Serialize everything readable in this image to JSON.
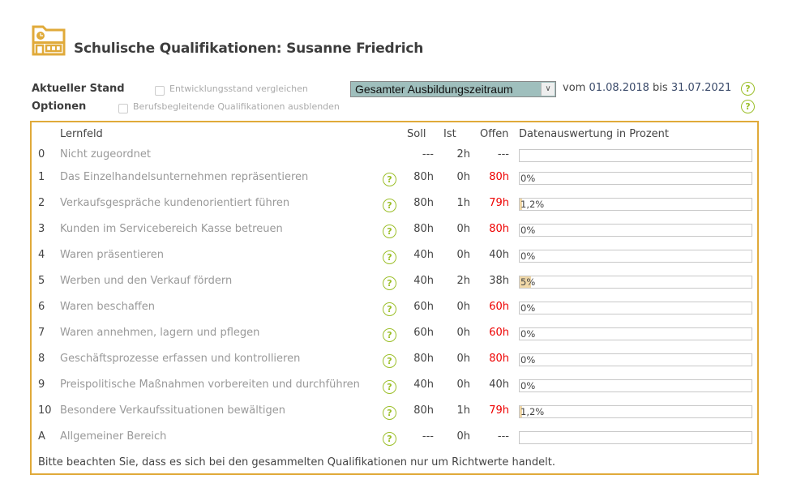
{
  "header": {
    "title": "Schulische Qualifikationen: Susanne Friedrich",
    "icon": "school-building-icon"
  },
  "controls": {
    "current_label": "Aktueller Stand",
    "options_label": "Optionen",
    "compare_checkbox": {
      "label": "Entwicklungsstand vergleichen",
      "checked": false
    },
    "hide_checkbox": {
      "label": "Berufsbegleitende Qualifikationen ausblenden",
      "checked": false
    },
    "period_select": "Gesamter Ausbildungszeitraum",
    "period_from_prefix": "vom",
    "period_from": "01.08.2018",
    "period_to_prefix": "bis",
    "period_to": "31.07.2021"
  },
  "table": {
    "columns": {
      "lernfeld": "Lernfeld",
      "soll": "Soll",
      "ist": "Ist",
      "offen": "Offen",
      "auswertung": "Datenauswertung in Prozent"
    },
    "rows": [
      {
        "num": "0",
        "name": "Nicht zugeordnet",
        "help": false,
        "soll": "---",
        "ist": "2h",
        "offen": "---",
        "offen_red": false,
        "percent_label": "",
        "percent": 0
      },
      {
        "num": "1",
        "name": "Das Einzelhandelsunternehmen repräsentieren",
        "help": true,
        "soll": "80h",
        "ist": "0h",
        "offen": "80h",
        "offen_red": true,
        "percent_label": "0%",
        "percent": 0
      },
      {
        "num": "2",
        "name": "Verkaufsgespräche kundenorientiert führen",
        "help": true,
        "soll": "80h",
        "ist": "1h",
        "offen": "79h",
        "offen_red": true,
        "percent_label": "1,2%",
        "percent": 1.2
      },
      {
        "num": "3",
        "name": "Kunden im Servicebereich Kasse betreuen",
        "help": true,
        "soll": "80h",
        "ist": "0h",
        "offen": "80h",
        "offen_red": true,
        "percent_label": "0%",
        "percent": 0
      },
      {
        "num": "4",
        "name": "Waren präsentieren",
        "help": true,
        "soll": "40h",
        "ist": "0h",
        "offen": "40h",
        "offen_red": false,
        "percent_label": "0%",
        "percent": 0
      },
      {
        "num": "5",
        "name": "Werben und den Verkauf fördern",
        "help": true,
        "soll": "40h",
        "ist": "2h",
        "offen": "38h",
        "offen_red": false,
        "percent_label": "5%",
        "percent": 5
      },
      {
        "num": "6",
        "name": "Waren beschaffen",
        "help": true,
        "soll": "60h",
        "ist": "0h",
        "offen": "60h",
        "offen_red": true,
        "percent_label": "0%",
        "percent": 0
      },
      {
        "num": "7",
        "name": "Waren annehmen, lagern und pflegen",
        "help": true,
        "soll": "60h",
        "ist": "0h",
        "offen": "60h",
        "offen_red": true,
        "percent_label": "0%",
        "percent": 0
      },
      {
        "num": "8",
        "name": "Geschäftsprozesse erfassen und kontrollieren",
        "help": true,
        "soll": "80h",
        "ist": "0h",
        "offen": "80h",
        "offen_red": true,
        "percent_label": "0%",
        "percent": 0
      },
      {
        "num": "9",
        "name": "Preispolitische Maßnahmen vorbereiten und durchführen",
        "help": true,
        "soll": "40h",
        "ist": "0h",
        "offen": "40h",
        "offen_red": false,
        "percent_label": "0%",
        "percent": 0
      },
      {
        "num": "10",
        "name": "Besondere Verkaufssituationen bewältigen",
        "help": true,
        "soll": "80h",
        "ist": "1h",
        "offen": "79h",
        "offen_red": true,
        "percent_label": "1,2%",
        "percent": 1.2
      },
      {
        "num": "A",
        "name": "Allgemeiner Bereich",
        "help": true,
        "soll": "---",
        "ist": "0h",
        "offen": "---",
        "offen_red": false,
        "percent_label": "",
        "percent": 0
      }
    ],
    "note": "Bitte beachten Sie, dass es sich bei den gesammelten Qualifikationen nur um Richtwerte handelt."
  },
  "help_glyph": "?",
  "colors": {
    "accent": "#e0aa3a",
    "help": "#9cbf2a",
    "offen_red": "#e00000",
    "progress_fill": "#f0d8a8",
    "select_bg": "#9fbfbd"
  }
}
